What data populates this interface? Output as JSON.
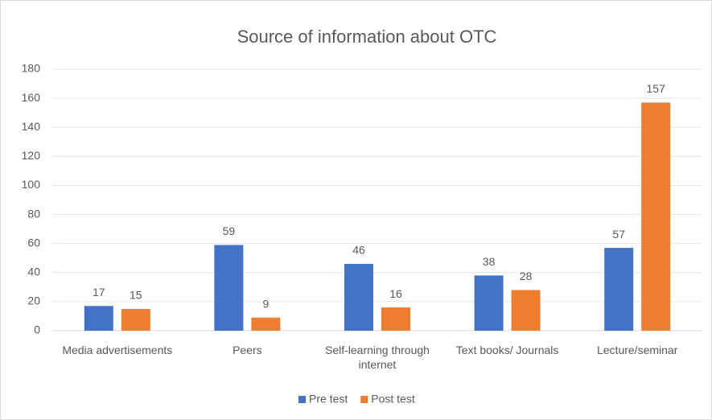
{
  "chart_data": {
    "type": "bar",
    "title": "Source of information about OTC",
    "categories": [
      "Media advertisements",
      "Peers",
      "Self-learning through internet",
      "Text books/ Journals",
      "Lecture/seminar"
    ],
    "series": [
      {
        "name": "Pre test",
        "color": "#4472c4",
        "values": [
          17,
          59,
          46,
          38,
          57
        ]
      },
      {
        "name": "Post test",
        "color": "#ed7d31",
        "values": [
          15,
          9,
          16,
          28,
          157
        ]
      }
    ],
    "ylim": [
      0,
      180
    ],
    "yticks": [
      0,
      20,
      40,
      60,
      80,
      100,
      120,
      140,
      160,
      180
    ],
    "grid": true,
    "legend": "bottom"
  }
}
